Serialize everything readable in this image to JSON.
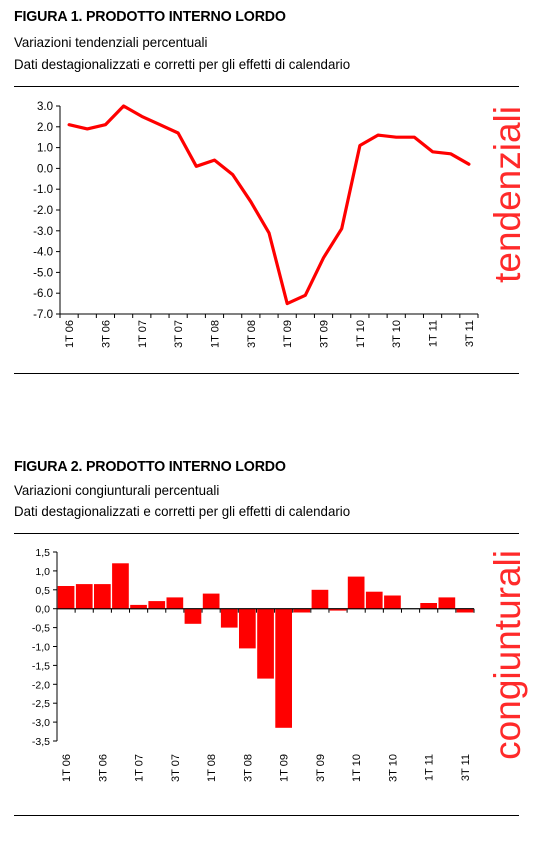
{
  "accent": "#ff0000",
  "figure1": {
    "title": "FIGURA 1. PRODOTTO INTERNO LORDO",
    "subtitle1": "Variazioni tendenziali percentuali",
    "subtitle2": "Dati destagionalizzati e corretti per gli effetti di calendario",
    "side_label": "tendenziali"
  },
  "figure2": {
    "title": "FIGURA 2. PRODOTTO INTERNO LORDO",
    "subtitle1": "Variazioni congiunturali percentuali",
    "subtitle2": "Dati destagionalizzati e corretti per gli effetti di calendario",
    "side_label": "congiunturali"
  },
  "chart_data": [
    {
      "type": "line",
      "color": "#ff0000",
      "x": [
        "1T 06",
        "2T 06",
        "3T 06",
        "4T 06",
        "1T 07",
        "2T 07",
        "3T 07",
        "4T 07",
        "1T 08",
        "2T 08",
        "3T 08",
        "4T 08",
        "1T 09",
        "2T 09",
        "3T 09",
        "4T 09",
        "1T 10",
        "2T 10",
        "3T 10",
        "4T 10",
        "1T 11",
        "2T 11",
        "3T 11"
      ],
      "tick_labels": [
        "1T 06",
        "3T 06",
        "1T 07",
        "3T 07",
        "1T 08",
        "3T 08",
        "1T 09",
        "3T 09",
        "1T 10",
        "3T 10",
        "1T 11",
        "3T 11"
      ],
      "values": [
        2.1,
        1.9,
        2.1,
        3.0,
        2.5,
        2.1,
        1.7,
        0.1,
        0.4,
        -0.3,
        -1.6,
        -3.1,
        -6.5,
        -6.1,
        -4.3,
        -2.9,
        1.1,
        1.6,
        1.5,
        1.5,
        0.8,
        0.7,
        0.2
      ],
      "ylim": [
        -7.0,
        3.0
      ],
      "yticks": [
        3.0,
        2.0,
        1.0,
        0.0,
        -1.0,
        -2.0,
        -3.0,
        -4.0,
        -5.0,
        -6.0,
        -7.0
      ],
      "ytick_labels": [
        "3.0",
        "2.0",
        "1.0",
        "0.0",
        "-1.0",
        "-2.0",
        "-3.0",
        "-4.0",
        "-5.0",
        "-6.0",
        "-7.0"
      ],
      "grid": false
    },
    {
      "type": "bar",
      "color": "#ff0000",
      "x": [
        "1T 06",
        "2T 06",
        "3T 06",
        "4T 06",
        "1T 07",
        "2T 07",
        "3T 07",
        "4T 07",
        "1T 08",
        "2T 08",
        "3T 08",
        "4T 08",
        "1T 09",
        "2T 09",
        "3T 09",
        "4T 09",
        "1T 10",
        "2T 10",
        "3T 10",
        "4T 10",
        "1T 11",
        "2T 11",
        "3T 11"
      ],
      "tick_labels": [
        "1T 06",
        "3T 06",
        "1T 07",
        "3T 07",
        "1T 08",
        "3T 08",
        "1T 09",
        "3T 09",
        "1T 10",
        "3T 10",
        "1T 11",
        "3T 11"
      ],
      "values": [
        0.6,
        0.65,
        0.65,
        1.2,
        0.1,
        0.2,
        0.3,
        -0.4,
        0.4,
        -0.5,
        -1.05,
        -1.85,
        -3.15,
        -0.1,
        0.5,
        -0.05,
        0.85,
        0.45,
        0.35,
        0.0,
        0.15,
        0.3,
        -0.1
      ],
      "ylim": [
        -3.5,
        1.5
      ],
      "yticks": [
        1.5,
        1.0,
        0.5,
        0.0,
        -0.5,
        -1.0,
        -1.5,
        -2.0,
        -2.5,
        -3.0,
        -3.5
      ],
      "ytick_labels": [
        "1,5",
        "1,0",
        "0,5",
        "0,0",
        "-0,5",
        "-1,0",
        "-1,5",
        "-2,0",
        "-2,5",
        "-3,0",
        "-3,5"
      ],
      "grid": false
    }
  ]
}
